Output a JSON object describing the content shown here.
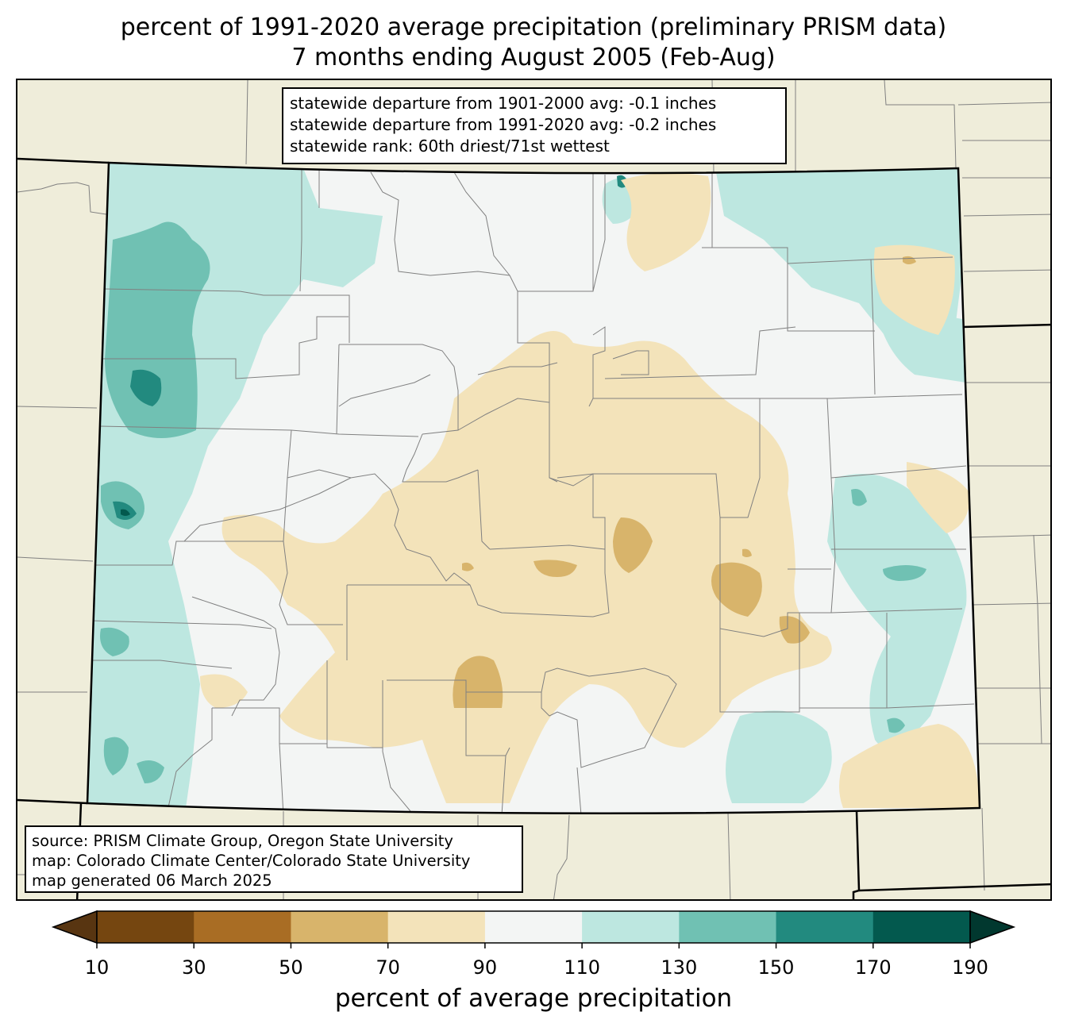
{
  "title_line1": "percent of 1991-2020 average precipitation (preliminary PRISM data)",
  "title_line2": "7 months ending August 2005 (Feb-Aug)",
  "stats": {
    "line1": "statewide departure from 1901-2000 avg: -0.1 inches",
    "line2": "statewide departure from 1991-2020 avg: -0.2 inches",
    "line3": "statewide rank: 60th driest/71st wettest"
  },
  "source": {
    "line1": "source: PRISM Climate Group, Oregon State University",
    "line2": "map: Colorado Climate Center/Colorado State University",
    "line3": "map generated 06 March 2025"
  },
  "colorbar": {
    "label": "percent of average precipitation",
    "ticks": [
      "10",
      "30",
      "50",
      "70",
      "90",
      "110",
      "130",
      "150",
      "170",
      "190"
    ],
    "colors": [
      "#754610",
      "#a96d24",
      "#d8b46b",
      "#f3e3ba",
      "#f3f5f4",
      "#bde7e0",
      "#70c1b3",
      "#228a7f",
      "#03594e"
    ],
    "under_color": "#583511",
    "over_color": "#01382f"
  },
  "colors": {
    "background_land": "#efedda",
    "state_fill": "#f3f5f4",
    "county_lines": "#808080",
    "state_border": "#000000"
  }
}
